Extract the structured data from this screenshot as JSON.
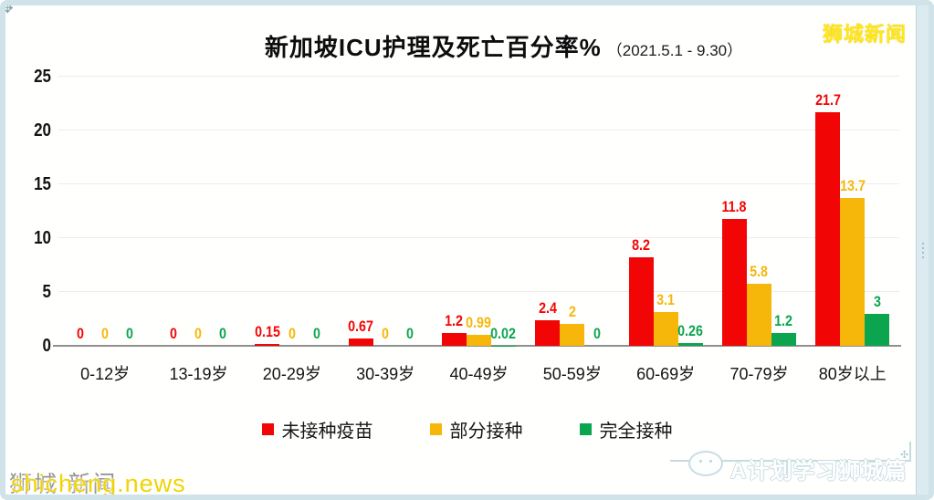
{
  "header": {
    "title": "新加坡ICU护理及死亡百分率%",
    "subtitle": "（2021.5.1 - 9.30）",
    "brand": "狮城新闻"
  },
  "chart_data": {
    "type": "bar",
    "title": "新加坡ICU护理及死亡百分率%",
    "subtitle": "（2021.5.1 - 9.30）",
    "xlabel": "",
    "ylabel": "",
    "ylim": [
      0,
      25
    ],
    "yticks": [
      0,
      5,
      10,
      15,
      20,
      25
    ],
    "grid": true,
    "legend_position": "bottom",
    "categories": [
      "0-12岁",
      "13-19岁",
      "20-29岁",
      "30-39岁",
      "40-49岁",
      "50-59岁",
      "60-69岁",
      "70-79岁",
      "80岁以上"
    ],
    "series": [
      {
        "name": "未接种疫苗",
        "color": "#f20505",
        "values": [
          0,
          0,
          0.15,
          0.67,
          1.2,
          2.4,
          8.2,
          11.8,
          21.7
        ]
      },
      {
        "name": "部分接种",
        "color": "#f6b70a",
        "values": [
          0,
          0,
          0,
          0,
          0.99,
          2,
          3.1,
          5.8,
          13.7
        ]
      },
      {
        "name": "完全接种",
        "color": "#0ba550",
        "values": [
          0,
          0,
          0,
          0,
          0.02,
          0,
          0.26,
          1.2,
          3
        ]
      }
    ]
  },
  "colors": {
    "unvaccinated": "#f20505",
    "partially_vaccinated": "#f6b70a",
    "fully_vaccinated": "#0ba550",
    "frame": "#d0e3e9",
    "gridline": "#ececec",
    "baseline": "#8f8f8f",
    "brand_yellow": "#ffe81a"
  },
  "watermarks": {
    "bottom_left_front": "shicheng.news",
    "bottom_left_back": "狮城·新闻",
    "bottom_right_text": "A计划学习狮城篇"
  }
}
